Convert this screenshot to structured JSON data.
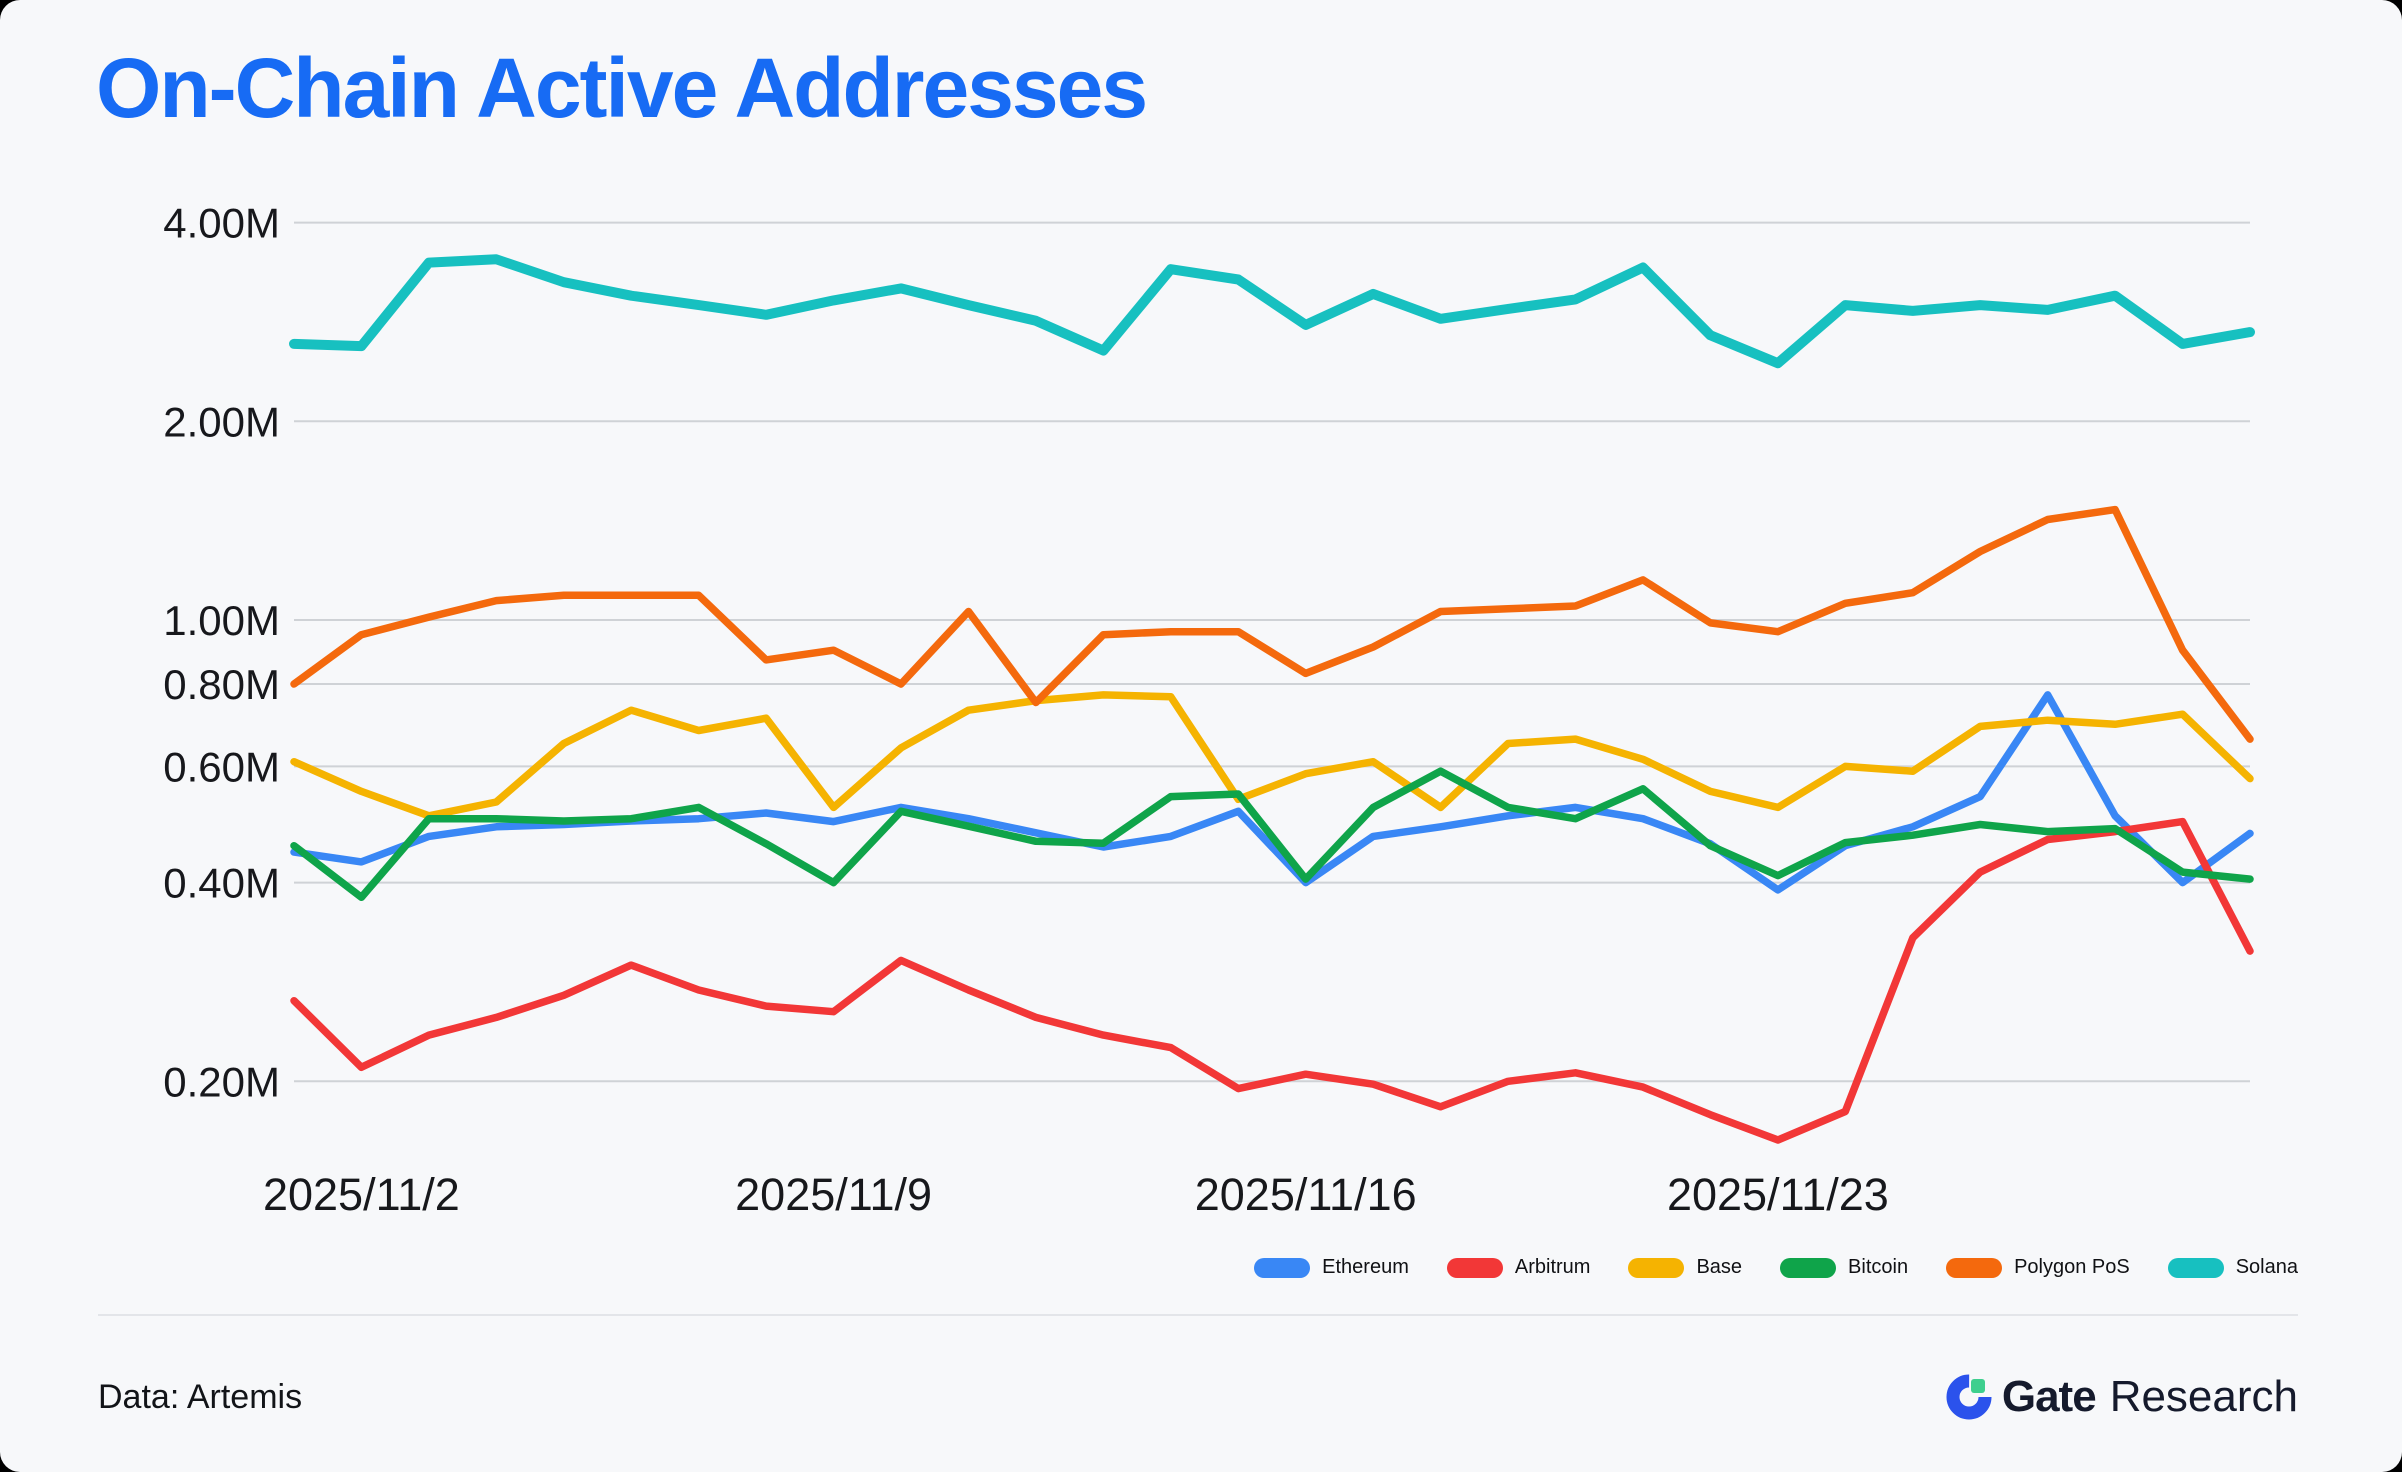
{
  "title": "On-Chain Active Addresses",
  "footer": {
    "source": "Data: Artemis",
    "brand_bold": "Gate",
    "brand_regular": "Research",
    "brand_mark_blue": "#2B52EC",
    "brand_mark_green": "#3ECF8E"
  },
  "legend": {
    "items": [
      {
        "label": "Ethereum",
        "color": "#3987F5"
      },
      {
        "label": "Arbitrum",
        "color": "#F23737"
      },
      {
        "label": "Base",
        "color": "#F5B301"
      },
      {
        "label": "Bitcoin",
        "color": "#0FA44A"
      },
      {
        "label": "Polygon PoS",
        "color": "#F4690D"
      },
      {
        "label": "Solana",
        "color": "#17C0C0"
      }
    ]
  },
  "chart_data": {
    "type": "line",
    "title": "On-Chain Active Addresses",
    "unit": "millions of active addresses",
    "y_axis": {
      "scale": "log",
      "gridlines": [
        4,
        2,
        1,
        0.8,
        0.6,
        0.4,
        0.2
      ],
      "gridline_labels": [
        "4.00M",
        "2.00M",
        "1.00M",
        "0.80M",
        "0.60M",
        "0.40M",
        "0.20M"
      ],
      "grid_on": true
    },
    "x": [
      "2025/11/1",
      "2025/11/2",
      "2025/11/3",
      "2025/11/4",
      "2025/11/5",
      "2025/11/6",
      "2025/11/7",
      "2025/11/8",
      "2025/11/9",
      "2025/11/10",
      "2025/11/11",
      "2025/11/12",
      "2025/11/13",
      "2025/11/14",
      "2025/11/15",
      "2025/11/16",
      "2025/11/17",
      "2025/11/18",
      "2025/11/19",
      "2025/11/20",
      "2025/11/21",
      "2025/11/22",
      "2025/11/23",
      "2025/11/24",
      "2025/11/25",
      "2025/11/26",
      "2025/11/27",
      "2025/11/28",
      "2025/11/29",
      "2025/11/30"
    ],
    "tick_indices": [
      1,
      8,
      15,
      22
    ],
    "tick_labels": [
      "2025/11/2",
      "2025/11/9",
      "2025/11/16",
      "2025/11/23"
    ],
    "legend_position": "bottom-right",
    "series": [
      {
        "id": "ethereum",
        "name": "Ethereum",
        "color": "#3987F5",
        "width": 7.5,
        "values": [
          0.445,
          0.43,
          0.47,
          0.486,
          0.49,
          0.496,
          0.5,
          0.51,
          0.495,
          0.52,
          0.5,
          0.476,
          0.453,
          0.47,
          0.513,
          0.4,
          0.47,
          0.486,
          0.505,
          0.52,
          0.5,
          0.458,
          0.39,
          0.455,
          0.486,
          0.54,
          0.77,
          0.505,
          0.4,
          0.475
        ]
      },
      {
        "id": "arbitrum",
        "name": "Arbitrum",
        "color": "#F23737",
        "width": 7.5,
        "values": [
          0.265,
          0.21,
          0.235,
          0.25,
          0.27,
          0.3,
          0.275,
          0.26,
          0.255,
          0.305,
          0.275,
          0.25,
          0.235,
          0.225,
          0.195,
          0.205,
          0.198,
          0.183,
          0.2,
          0.206,
          0.196,
          0.178,
          0.163,
          0.18,
          0.33,
          0.415,
          0.465,
          0.478,
          0.495,
          0.315
        ]
      },
      {
        "id": "base",
        "name": "Base",
        "color": "#F5B301",
        "width": 7.5,
        "values": [
          0.61,
          0.55,
          0.505,
          0.53,
          0.65,
          0.73,
          0.68,
          0.71,
          0.52,
          0.64,
          0.73,
          0.755,
          0.77,
          0.765,
          0.535,
          0.585,
          0.61,
          0.52,
          0.65,
          0.66,
          0.615,
          0.55,
          0.52,
          0.6,
          0.59,
          0.69,
          0.705,
          0.695,
          0.72,
          0.575
        ]
      },
      {
        "id": "bitcoin",
        "name": "Bitcoin",
        "color": "#0FA44A",
        "width": 7.5,
        "values": [
          0.455,
          0.38,
          0.5,
          0.5,
          0.496,
          0.5,
          0.52,
          0.458,
          0.4,
          0.513,
          0.487,
          0.462,
          0.459,
          0.54,
          0.545,
          0.405,
          0.52,
          0.59,
          0.52,
          0.5,
          0.555,
          0.455,
          0.41,
          0.46,
          0.472,
          0.49,
          0.478,
          0.483,
          0.415,
          0.405
        ]
      },
      {
        "id": "polygon-pos",
        "name": "Polygon PoS",
        "color": "#F4690D",
        "width": 7.5,
        "values": [
          0.8,
          0.95,
          1.01,
          1.07,
          1.09,
          1.09,
          1.09,
          0.87,
          0.9,
          0.8,
          1.03,
          0.75,
          0.95,
          0.96,
          0.96,
          0.83,
          0.91,
          1.03,
          1.04,
          1.05,
          1.15,
          0.99,
          0.96,
          1.06,
          1.1,
          1.27,
          1.42,
          1.47,
          0.9,
          0.66
        ]
      },
      {
        "id": "solana",
        "name": "Solana",
        "color": "#17C0C0",
        "width": 10,
        "values": [
          2.62,
          2.6,
          3.48,
          3.52,
          3.25,
          3.1,
          3.0,
          2.9,
          3.05,
          3.18,
          3.0,
          2.84,
          2.56,
          3.4,
          3.28,
          2.8,
          3.12,
          2.86,
          2.96,
          3.06,
          3.42,
          2.7,
          2.45,
          3.0,
          2.94,
          3.0,
          2.95,
          3.1,
          2.62,
          2.73
        ]
      }
    ]
  }
}
